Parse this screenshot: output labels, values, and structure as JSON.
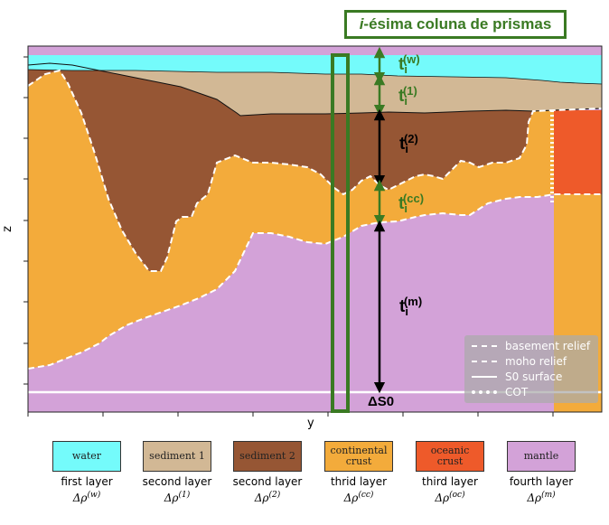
{
  "title": {
    "prefix": "i",
    "rest": "-ésima coluna de prismas"
  },
  "axes": {
    "xlabel": "y",
    "ylabel": "z"
  },
  "colors": {
    "water": "#74fbfb",
    "sediment1": "#d2b895",
    "sediment2": "#965634",
    "continental_crust": "#f3ab3b",
    "oceanic_crust": "#ee5a2a",
    "mantle": "#d3a2d8",
    "column_outline": "#3a7a23"
  },
  "thickness_labels": [
    {
      "base": "t",
      "sub": "i",
      "sup": "(w)"
    },
    {
      "base": "t",
      "sub": "i",
      "sup": "(1)"
    },
    {
      "base": "t",
      "sub": "i",
      "sup": "(2)"
    },
    {
      "base": "t",
      "sub": "i",
      "sup": "(cc)"
    },
    {
      "base": "t",
      "sub": "i",
      "sup": "(m)"
    }
  ],
  "reference_label": "ΔS0",
  "legend": {
    "basement": "basement relief",
    "moho": "moho relief",
    "s0": "S0 surface",
    "cot": "COT"
  },
  "swatches": [
    {
      "label": "water",
      "caption": "first layer",
      "rho": "Δρ",
      "rho_sup": "(w)"
    },
    {
      "label": "sediment 1",
      "caption": "second layer",
      "rho": "Δρ",
      "rho_sup": "(1)"
    },
    {
      "label": "sediment 2",
      "caption": "second layer",
      "rho": "Δρ",
      "rho_sup": "(2)"
    },
    {
      "label": "continental crust",
      "caption": "thrid layer",
      "rho": "Δρ",
      "rho_sup": "(cc)"
    },
    {
      "label": "oceanic crust",
      "caption": "third layer",
      "rho": "Δρ",
      "rho_sup": "(oc)"
    },
    {
      "label": "mantle",
      "caption": "fourth layer",
      "rho": "Δρ",
      "rho_sup": "(m)"
    }
  ]
}
